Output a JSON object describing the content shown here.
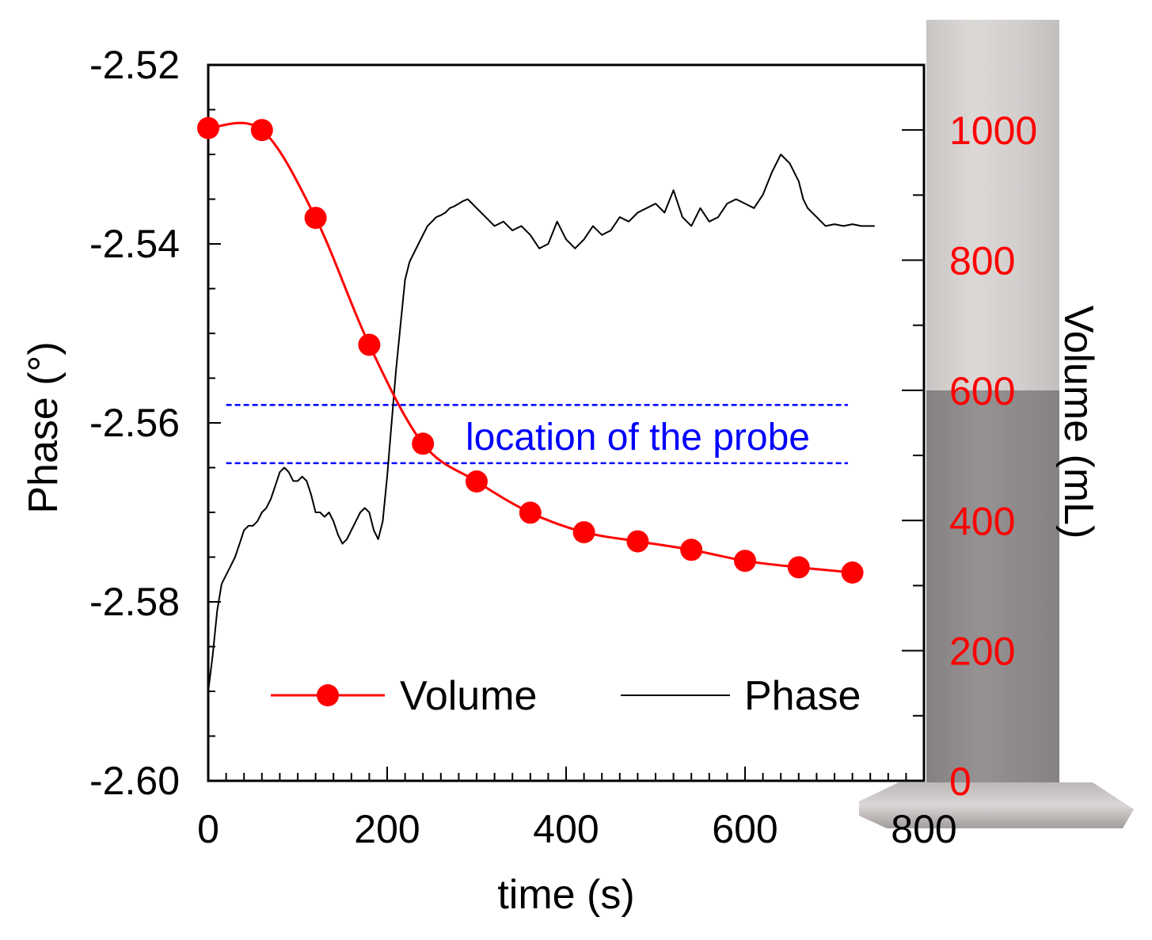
{
  "chart_data": {
    "type": "line",
    "title": "",
    "xlabel": "time (s)",
    "ylabel": "Phase (°)",
    "y2label": "Volume (mL)",
    "xlim": [
      0,
      800
    ],
    "ylim": [
      -2.6,
      -2.52
    ],
    "y2lim": [
      0,
      1100
    ],
    "x_ticks": [
      0,
      200,
      400,
      600,
      800
    ],
    "y_ticks": [
      -2.52,
      -2.54,
      -2.56,
      -2.58,
      -2.6
    ],
    "y_tick_labels": [
      "-2.52",
      "-2.54",
      "-2.56",
      "-2.58",
      "-2.60"
    ],
    "y2_ticks": [
      0,
      200,
      400,
      600,
      800,
      1000
    ],
    "legend_position": "bottom",
    "colors": {
      "volume": "#ff0000",
      "phase": "#000000",
      "probe": "#0000ff",
      "cylinder": "#cfcbca",
      "liquid": "#8f8b8c"
    },
    "series": [
      {
        "name": "Volume",
        "axis": "right",
        "marker": "circle",
        "x": [
          0,
          60,
          120,
          180,
          240,
          300,
          360,
          420,
          480,
          540,
          600,
          660,
          720
        ],
        "y": [
          1003,
          1000,
          865,
          670,
          518,
          460,
          412,
          382,
          368,
          355,
          338,
          328,
          320
        ]
      },
      {
        "name": "Phase",
        "axis": "left",
        "x": [
          0,
          5,
          10,
          15,
          20,
          25,
          30,
          35,
          40,
          45,
          50,
          55,
          60,
          65,
          70,
          75,
          80,
          85,
          90,
          95,
          100,
          105,
          110,
          115,
          120,
          125,
          130,
          135,
          140,
          145,
          150,
          155,
          160,
          165,
          170,
          175,
          180,
          185,
          190,
          195,
          200,
          205,
          210,
          215,
          220,
          225,
          230,
          235,
          240,
          245,
          250,
          255,
          260,
          265,
          270,
          275,
          280,
          285,
          290,
          295,
          300,
          310,
          320,
          330,
          340,
          350,
          360,
          370,
          380,
          390,
          400,
          410,
          420,
          430,
          440,
          450,
          460,
          470,
          480,
          490,
          500,
          510,
          520,
          530,
          540,
          550,
          560,
          570,
          580,
          590,
          600,
          610,
          620,
          630,
          640,
          650,
          660,
          665,
          670,
          680,
          690,
          700,
          710,
          720,
          730,
          740,
          745
        ],
        "y": [
          -2.59,
          -2.586,
          -2.581,
          -2.578,
          -2.577,
          -2.576,
          -2.575,
          -2.5735,
          -2.572,
          -2.5715,
          -2.5715,
          -2.571,
          -2.57,
          -2.5695,
          -2.5685,
          -2.567,
          -2.5655,
          -2.565,
          -2.5655,
          -2.5665,
          -2.5665,
          -2.566,
          -2.5665,
          -2.568,
          -2.57,
          -2.57,
          -2.5705,
          -2.57,
          -2.571,
          -2.5725,
          -2.5735,
          -2.573,
          -2.572,
          -2.571,
          -2.57,
          -2.5695,
          -2.57,
          -2.572,
          -2.573,
          -2.571,
          -2.566,
          -2.56,
          -2.554,
          -2.549,
          -2.544,
          -2.542,
          -2.541,
          -2.54,
          -2.539,
          -2.538,
          -2.5375,
          -2.537,
          -2.5368,
          -2.5365,
          -2.536,
          -2.5358,
          -2.5355,
          -2.5352,
          -2.535,
          -2.5355,
          -2.536,
          -2.537,
          -2.538,
          -2.5375,
          -2.5385,
          -2.538,
          -2.539,
          -2.5405,
          -2.54,
          -2.5375,
          -2.5395,
          -2.5405,
          -2.5395,
          -2.538,
          -2.539,
          -2.5385,
          -2.537,
          -2.5375,
          -2.5365,
          -2.536,
          -2.5355,
          -2.5365,
          -2.534,
          -2.537,
          -2.538,
          -2.536,
          -2.5375,
          -2.537,
          -2.5355,
          -2.535,
          -2.5355,
          -2.536,
          -2.5345,
          -2.532,
          -2.53,
          -2.531,
          -2.533,
          -2.535,
          -2.536,
          -2.537,
          -2.538,
          -2.5378,
          -2.538,
          -2.5378,
          -2.538,
          -2.538,
          -2.538
        ]
      }
    ],
    "annotations": [
      {
        "text": "location of  the probe",
        "type": "band",
        "axis": "left",
        "y_range": [
          -2.558,
          -2.5645
        ],
        "x_range": [
          20,
          715
        ]
      }
    ]
  }
}
